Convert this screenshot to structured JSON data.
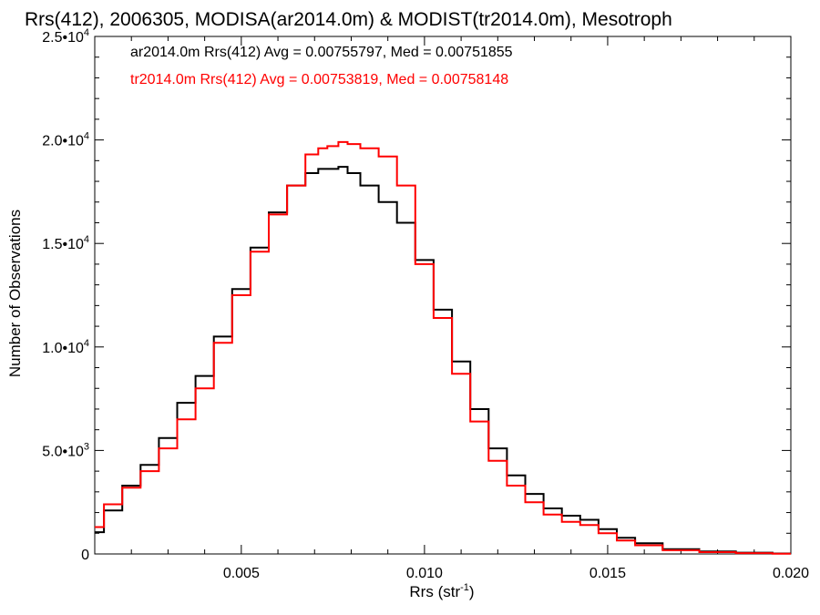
{
  "chart_data": {
    "type": "line",
    "title": "Rrs(412), 2006305, MODISA(ar2014.0m) & MODIST(tr2014.0m), Mesotroph",
    "xlabel_main": "Rrs (str",
    "xlabel_sup": "-1",
    "xlabel_tail": ")",
    "ylabel": "Number of Observations",
    "xlim": [
      0.001,
      0.02
    ],
    "ylim": [
      0,
      25000
    ],
    "x_ticks": [
      {
        "value": 0.005,
        "label": "0.005"
      },
      {
        "value": 0.01,
        "label": "0.010"
      },
      {
        "value": 0.015,
        "label": "0.015"
      },
      {
        "value": 0.02,
        "label": "0.020"
      }
    ],
    "y_ticks": [
      {
        "value": 0,
        "mant": "0",
        "exp": ""
      },
      {
        "value": 5000,
        "mant": "5.0•10",
        "exp": "3"
      },
      {
        "value": 10000,
        "mant": "1.0•10",
        "exp": "4"
      },
      {
        "value": 15000,
        "mant": "1.5•10",
        "exp": "4"
      },
      {
        "value": 20000,
        "mant": "2.0•10",
        "exp": "4"
      },
      {
        "value": 25000,
        "mant": "2.5•10",
        "exp": "4"
      }
    ],
    "legend": [
      {
        "text": "ar2014.0m Rrs(412) Avg = 0.00755797, Med = 0.00751855",
        "color": "#000000"
      },
      {
        "text": "tr2014.0m Rrs(412) Avg = 0.00753819, Med = 0.00758148",
        "color": "#ff0000"
      }
    ],
    "series": [
      {
        "color": "#000000",
        "x": [
          0.001,
          0.0015,
          0.002,
          0.0025,
          0.003,
          0.0035,
          0.004,
          0.0045,
          0.005,
          0.0055,
          0.006,
          0.0065,
          0.007,
          0.0072,
          0.0075,
          0.0078,
          0.008,
          0.0085,
          0.009,
          0.0095,
          0.01,
          0.0105,
          0.011,
          0.0115,
          0.012,
          0.0125,
          0.013,
          0.0135,
          0.014,
          0.0145,
          0.015,
          0.0155,
          0.016,
          0.017,
          0.018,
          0.019,
          0.02
        ],
        "y": [
          1050,
          2100,
          3300,
          4300,
          5600,
          7300,
          8600,
          10500,
          12800,
          14800,
          16500,
          17800,
          18400,
          18600,
          18600,
          18700,
          18400,
          17800,
          17000,
          16000,
          14200,
          11800,
          9300,
          7000,
          5100,
          3800,
          2900,
          2200,
          1850,
          1650,
          1200,
          780,
          520,
          230,
          120,
          60,
          20
        ]
      },
      {
        "color": "#ff0000",
        "x": [
          0.001,
          0.0015,
          0.002,
          0.0025,
          0.003,
          0.0035,
          0.004,
          0.0045,
          0.005,
          0.0055,
          0.006,
          0.0065,
          0.007,
          0.0072,
          0.0075,
          0.0078,
          0.008,
          0.0085,
          0.009,
          0.0095,
          0.01,
          0.0105,
          0.011,
          0.0115,
          0.012,
          0.0125,
          0.013,
          0.0135,
          0.014,
          0.0145,
          0.015,
          0.0155,
          0.016,
          0.017,
          0.018,
          0.019,
          0.02
        ],
        "y": [
          1300,
          2400,
          3200,
          4000,
          5100,
          6500,
          8000,
          10200,
          12500,
          14600,
          16400,
          17800,
          19300,
          19600,
          19700,
          19900,
          19800,
          19600,
          19200,
          17800,
          14000,
          11400,
          8700,
          6400,
          4500,
          3300,
          2500,
          1900,
          1550,
          1400,
          1000,
          650,
          420,
          180,
          90,
          40,
          15
        ]
      }
    ]
  }
}
